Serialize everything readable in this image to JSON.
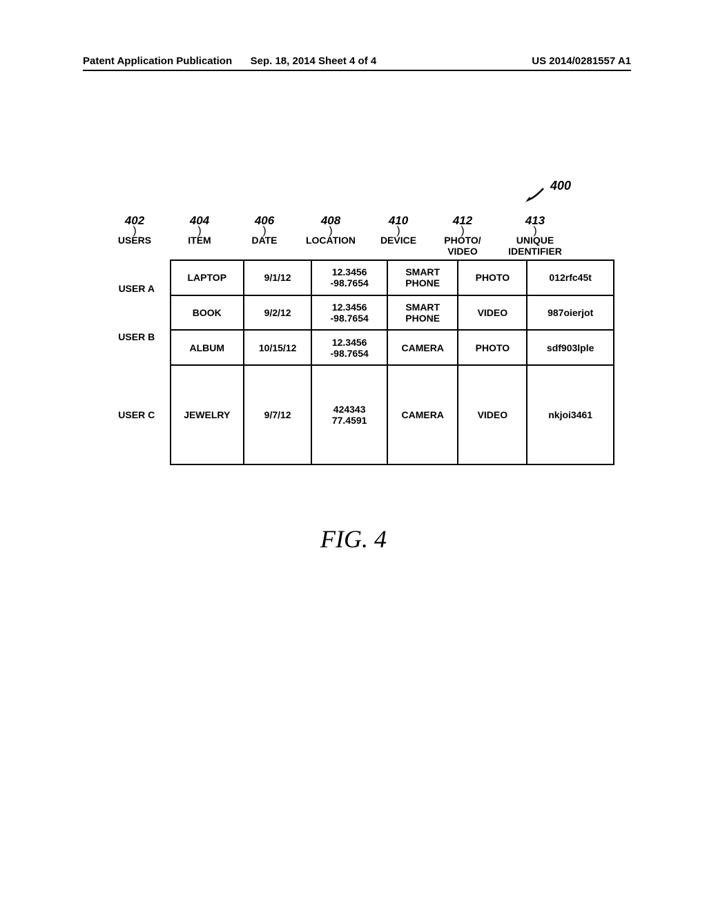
{
  "header": {
    "publication_label": "Patent Application Publication",
    "date_sheet": "Sep. 18, 2014  Sheet 4 of 4",
    "publication_number": "US 2014/0281557 A1"
  },
  "figure_ref": {
    "number": "400"
  },
  "table": {
    "columns": [
      {
        "ref": "402",
        "label": "USERS",
        "width_class": "w-users"
      },
      {
        "ref": "404",
        "label": "ITEM",
        "width_class": "w-item"
      },
      {
        "ref": "406",
        "label": "DATE",
        "width_class": "w-date"
      },
      {
        "ref": "408",
        "label": "LOCATION",
        "width_class": "w-location"
      },
      {
        "ref": "410",
        "label": "DEVICE",
        "width_class": "w-device"
      },
      {
        "ref": "412",
        "label": "PHOTO/\nVIDEO",
        "width_class": "w-photovideo"
      },
      {
        "ref": "413",
        "label": "UNIQUE\nIDENTIFIER",
        "width_class": "w-identifier"
      }
    ],
    "users_group1": [
      "USER A",
      "USER B"
    ],
    "user_c": "USER C",
    "rows": [
      {
        "item": "LAPTOP",
        "date": "9/1/12",
        "location": "12.3456\n-98.7654",
        "device": "SMART\nPHONE",
        "photovideo": "PHOTO",
        "identifier": "012rfc45t"
      },
      {
        "item": "BOOK",
        "date": "9/2/12",
        "location": "12.3456\n-98.7654",
        "device": "SMART\nPHONE",
        "photovideo": "VIDEO",
        "identifier": "987oierjot"
      },
      {
        "item": "ALBUM",
        "date": "10/15/12",
        "location": "12.3456\n-98.7654",
        "device": "CAMERA",
        "photovideo": "PHOTO",
        "identifier": "sdf903lple"
      },
      {
        "item": "JEWELRY",
        "date": "9/7/12",
        "location": "424343\n77.4591",
        "device": "CAMERA",
        "photovideo": "VIDEO",
        "identifier": "nkjoi3461"
      }
    ]
  },
  "caption": "FIG. 4",
  "colors": {
    "text": "#000000",
    "background": "#ffffff",
    "border": "#000000"
  }
}
